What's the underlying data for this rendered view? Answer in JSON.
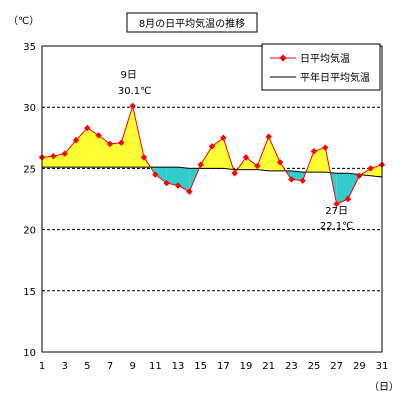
{
  "chart_data": {
    "type": "line",
    "title": "8月の日平均気温の推移",
    "y_unit": "（℃）",
    "x_unit": "（日）",
    "ylim": [
      10,
      35
    ],
    "y_ticks": [
      10,
      15,
      20,
      25,
      30,
      35
    ],
    "x_ticks": [
      1,
      3,
      5,
      7,
      9,
      11,
      13,
      15,
      17,
      19,
      21,
      23,
      25,
      27,
      29,
      31
    ],
    "grid": "horizontal dashed",
    "legend_position": "top-right",
    "colors": {
      "above_fill": "#ffff33",
      "below_fill": "#33cccc",
      "marker": "#ff0000",
      "line": "#000000"
    },
    "x": [
      1,
      2,
      3,
      4,
      5,
      6,
      7,
      8,
      9,
      10,
      11,
      12,
      13,
      14,
      15,
      16,
      17,
      18,
      19,
      20,
      21,
      22,
      23,
      24,
      25,
      26,
      27,
      28,
      29,
      30,
      31
    ],
    "series": [
      {
        "name": "日平均気温",
        "values": [
          25.9,
          26.0,
          26.2,
          27.3,
          28.3,
          27.7,
          27.0,
          27.1,
          30.1,
          25.9,
          24.5,
          23.8,
          23.6,
          23.1,
          25.3,
          26.8,
          27.5,
          24.6,
          25.9,
          25.2,
          27.6,
          25.5,
          24.1,
          24.0,
          26.4,
          26.7,
          22.1,
          22.5,
          24.4,
          25.0,
          25.3
        ]
      },
      {
        "name": "平年日平均気温",
        "values": [
          25.1,
          25.1,
          25.1,
          25.1,
          25.1,
          25.1,
          25.1,
          25.1,
          25.1,
          25.1,
          25.1,
          25.1,
          25.1,
          25.0,
          25.0,
          25.0,
          25.0,
          24.9,
          24.9,
          24.9,
          24.8,
          24.8,
          24.8,
          24.7,
          24.7,
          24.7,
          24.6,
          24.6,
          24.5,
          24.4,
          24.3
        ]
      }
    ],
    "annotations": [
      {
        "x": 9,
        "day_label": "9日",
        "value_label": "30.1℃"
      },
      {
        "x": 27,
        "day_label": "27日",
        "value_label": "22.1℃"
      }
    ]
  }
}
